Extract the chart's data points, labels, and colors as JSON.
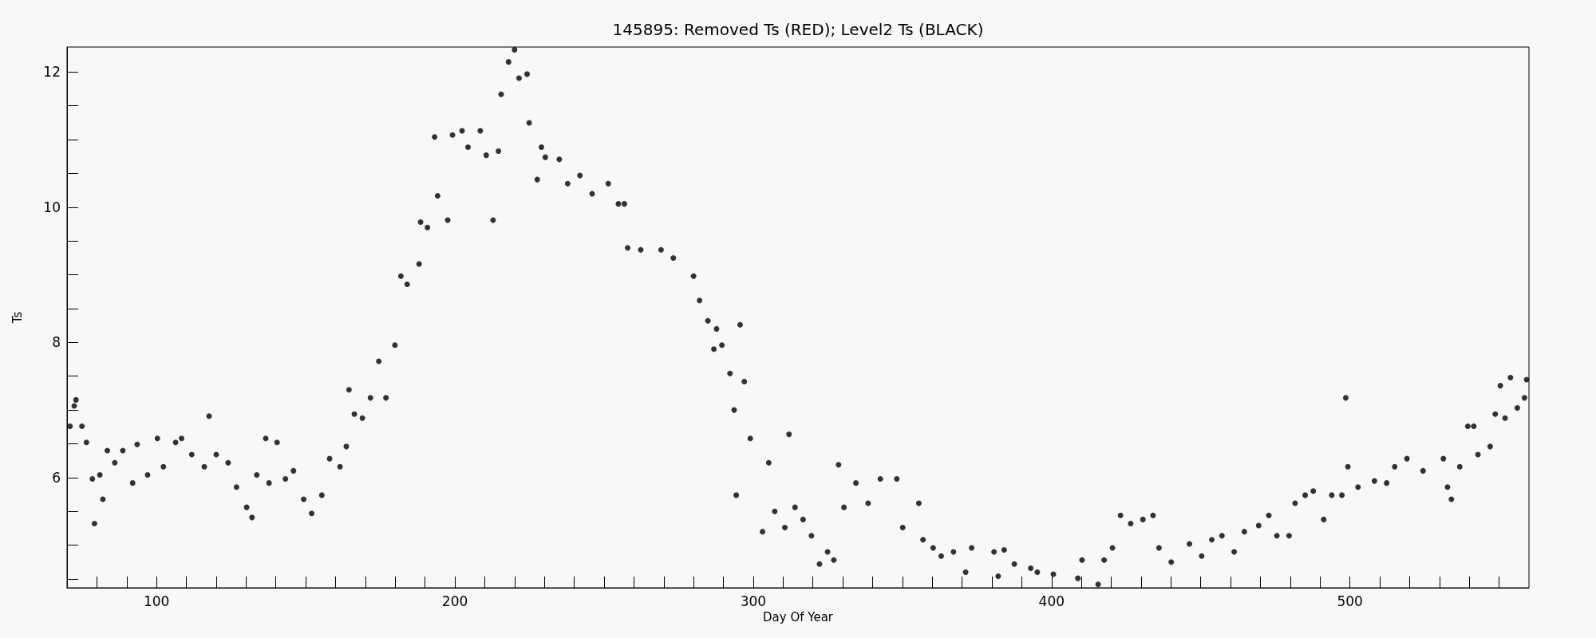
{
  "chart_data": {
    "type": "scatter",
    "title": "145895: Removed Ts (RED); Level2 Ts (BLACK)",
    "xlabel": "Day Of Year",
    "ylabel": "Ts",
    "marker": "circle",
    "xlim": [
      70,
      560
    ],
    "ylim": [
      4.37,
      12.37
    ],
    "xticks": [
      {
        "value": 80,
        "label": null
      },
      {
        "value": 90,
        "label": null
      },
      100,
      {
        "value": 110,
        "label": null
      },
      {
        "value": 120,
        "label": null
      },
      {
        "value": 130,
        "label": null
      },
      {
        "value": 140,
        "label": null
      },
      {
        "value": 150,
        "label": null
      },
      {
        "value": 160,
        "label": null
      },
      {
        "value": 170,
        "label": null
      },
      {
        "value": 180,
        "label": null
      },
      {
        "value": 190,
        "label": null
      },
      200,
      {
        "value": 210,
        "label": null
      },
      {
        "value": 220,
        "label": null
      },
      {
        "value": 230,
        "label": null
      },
      {
        "value": 240,
        "label": null
      },
      {
        "value": 250,
        "label": null
      },
      {
        "value": 260,
        "label": null
      },
      {
        "value": 270,
        "label": null
      },
      {
        "value": 280,
        "label": null
      },
      {
        "value": 290,
        "label": null
      },
      300,
      {
        "value": 310,
        "label": null
      },
      {
        "value": 320,
        "label": null
      },
      {
        "value": 330,
        "label": null
      },
      {
        "value": 340,
        "label": null
      },
      {
        "value": 350,
        "label": null
      },
      {
        "value": 360,
        "label": null
      },
      {
        "value": 370,
        "label": null
      },
      {
        "value": 380,
        "label": null
      },
      {
        "value": 390,
        "label": null
      },
      400,
      {
        "value": 410,
        "label": null
      },
      {
        "value": 420,
        "label": null
      },
      {
        "value": 430,
        "label": null
      },
      {
        "value": 440,
        "label": null
      },
      {
        "value": 450,
        "label": null
      },
      {
        "value": 460,
        "label": null
      },
      {
        "value": 470,
        "label": null
      },
      {
        "value": 480,
        "label": null
      },
      {
        "value": 490,
        "label": null
      },
      500,
      {
        "value": 510,
        "label": null
      },
      {
        "value": 520,
        "label": null
      },
      {
        "value": 530,
        "label": null
      },
      {
        "value": 540,
        "label": null
      },
      {
        "value": 550,
        "label": null
      }
    ],
    "yticks": [
      {
        "value": 4.5,
        "label": null
      },
      {
        "value": 5,
        "label": null
      },
      {
        "value": 5.5,
        "label": null
      },
      6,
      {
        "value": 6.5,
        "label": null
      },
      {
        "value": 7,
        "label": null
      },
      {
        "value": 7.5,
        "label": null
      },
      8,
      {
        "value": 8.5,
        "label": null
      },
      {
        "value": 9,
        "label": null
      },
      {
        "value": 9.5,
        "label": null
      },
      10,
      {
        "value": 10.5,
        "label": null
      },
      {
        "value": 11,
        "label": null
      },
      {
        "value": 11.5,
        "label": null
      },
      12
    ],
    "series": [
      {
        "color": "#000000",
        "x": [
          71,
          72.4,
          73,
          75,
          76.5,
          78.5,
          79.2,
          81,
          82,
          83.5,
          86,
          88.7,
          92,
          93.5,
          97,
          100.3,
          102.3,
          106.4,
          108.4,
          111.8,
          116,
          117.6,
          120,
          124,
          126.8,
          130.2,
          132,
          133.6,
          136.6,
          137.7,
          140.4,
          143.2,
          145.9,
          149.3,
          152,
          155.4,
          158,
          161.5,
          163.6,
          164.5,
          166.3,
          169,
          171.7,
          174.5,
          176.9,
          179.9,
          181.9,
          184,
          188,
          188.5,
          190.8,
          193.2,
          194.2,
          197.6,
          199.2,
          202.4,
          204.4,
          208.5,
          210.5,
          212.8,
          214.6,
          215.5,
          218,
          220,
          221.5,
          224.2,
          224.9,
          227.6,
          229,
          230.3,
          235,
          237.8,
          241.9,
          246,
          251.4,
          254.8,
          256.8,
          257.9,
          262.3,
          269.1,
          273.2,
          280,
          282,
          284.8,
          286.8,
          287.7,
          289.5,
          292.2,
          293.6,
          294.3,
          295.6,
          297,
          299,
          303.1,
          305.2,
          307.2,
          310.6,
          312,
          314,
          316.7,
          319.5,
          322.2,
          324.9,
          327,
          328.6,
          330.4,
          334.4,
          338.5,
          342.6,
          348.1,
          350.1,
          355.5,
          356.9,
          360.3,
          363,
          367.1,
          371.2,
          373.2,
          380.7,
          382.1,
          384.1,
          387.5,
          393,
          395.2,
          400.6,
          408.8,
          410.2,
          415.6,
          417.6,
          420.4,
          423.1,
          426.5,
          430.6,
          434,
          436,
          440.1,
          446.2,
          450.3,
          453.7,
          457.1,
          461.2,
          464.6,
          469.4,
          472.8,
          475.5,
          479.6,
          481.6,
          485,
          487.7,
          491.2,
          493.9,
          497.3,
          498.6,
          499.3,
          502.7,
          508.2,
          512.3,
          515,
          519.1,
          524.5,
          531.3,
          532.7,
          534,
          536.8,
          539.5,
          541.5,
          542.9,
          547,
          548.7,
          550.4,
          552,
          553.8,
          556.1,
          558.5,
          559.2
        ],
        "values": [
          6.76,
          7.06,
          7.15,
          6.76,
          6.52,
          5.98,
          5.32,
          6.04,
          5.68,
          6.4,
          6.22,
          6.4,
          5.92,
          6.49,
          6.04,
          6.58,
          6.16,
          6.52,
          6.58,
          6.34,
          6.16,
          6.91,
          6.34,
          6.22,
          5.86,
          5.56,
          5.41,
          6.04,
          6.58,
          5.92,
          6.52,
          5.98,
          6.1,
          5.68,
          5.47,
          5.74,
          6.28,
          6.16,
          6.46,
          7.3,
          6.94,
          6.88,
          7.18,
          7.72,
          7.18,
          7.96,
          8.98,
          8.86,
          9.16,
          9.78,
          9.7,
          11.04,
          10.17,
          9.81,
          11.07,
          11.13,
          10.89,
          11.13,
          10.77,
          9.81,
          10.83,
          11.67,
          12.15,
          12.33,
          11.91,
          11.97,
          11.25,
          10.41,
          10.89,
          10.74,
          10.71,
          10.35,
          10.47,
          10.2,
          10.35,
          10.05,
          10.05,
          9.4,
          9.37,
          9.37,
          9.25,
          8.98,
          8.62,
          8.32,
          7.9,
          8.2,
          7.96,
          7.54,
          7.0,
          5.74,
          8.26,
          7.42,
          6.58,
          5.2,
          6.22,
          5.5,
          5.26,
          6.64,
          5.56,
          5.38,
          5.14,
          4.72,
          4.9,
          4.78,
          6.19,
          5.56,
          5.92,
          5.62,
          5.98,
          5.98,
          5.26,
          5.62,
          5.08,
          4.96,
          4.84,
          4.9,
          4.6,
          4.96,
          4.9,
          4.54,
          4.93,
          4.72,
          4.66,
          4.6,
          4.57,
          4.51,
          4.78,
          4.42,
          4.78,
          4.96,
          5.44,
          5.32,
          5.38,
          5.44,
          4.96,
          4.75,
          5.02,
          4.84,
          5.08,
          5.14,
          4.9,
          5.2,
          5.29,
          5.44,
          5.14,
          5.14,
          5.62,
          5.74,
          5.8,
          5.38,
          5.74,
          5.74,
          7.18,
          6.16,
          5.86,
          5.95,
          5.92,
          6.16,
          6.28,
          6.1,
          6.28,
          5.86,
          5.68,
          6.16,
          6.76,
          6.76,
          6.34,
          6.46,
          6.94,
          7.36,
          6.88,
          7.48,
          7.03,
          7.18,
          7.45
        ]
      }
    ]
  }
}
